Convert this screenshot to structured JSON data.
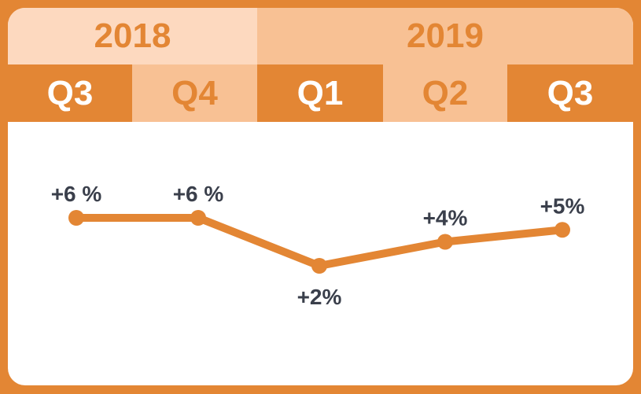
{
  "chart_data": {
    "type": "line",
    "years": [
      {
        "label": "2018",
        "quarters": 2
      },
      {
        "label": "2019",
        "quarters": 3
      }
    ],
    "categories": [
      "Q3",
      "Q4",
      "Q1",
      "Q2",
      "Q3"
    ],
    "values": [
      6,
      6,
      2,
      4,
      5
    ],
    "labels": [
      "+6 %",
      "+6 %",
      "+2%",
      "+4%",
      "+5%"
    ],
    "label_position": [
      "above",
      "above",
      "below",
      "above",
      "above"
    ],
    "unit": "%",
    "colors": {
      "line": "#E38634",
      "year_2018": "#FDD9BF",
      "year_2019": "#F8C194",
      "quarter_dark": "#E38634",
      "quarter_light": "#F8C194",
      "label": "#3A3F4B"
    }
  }
}
